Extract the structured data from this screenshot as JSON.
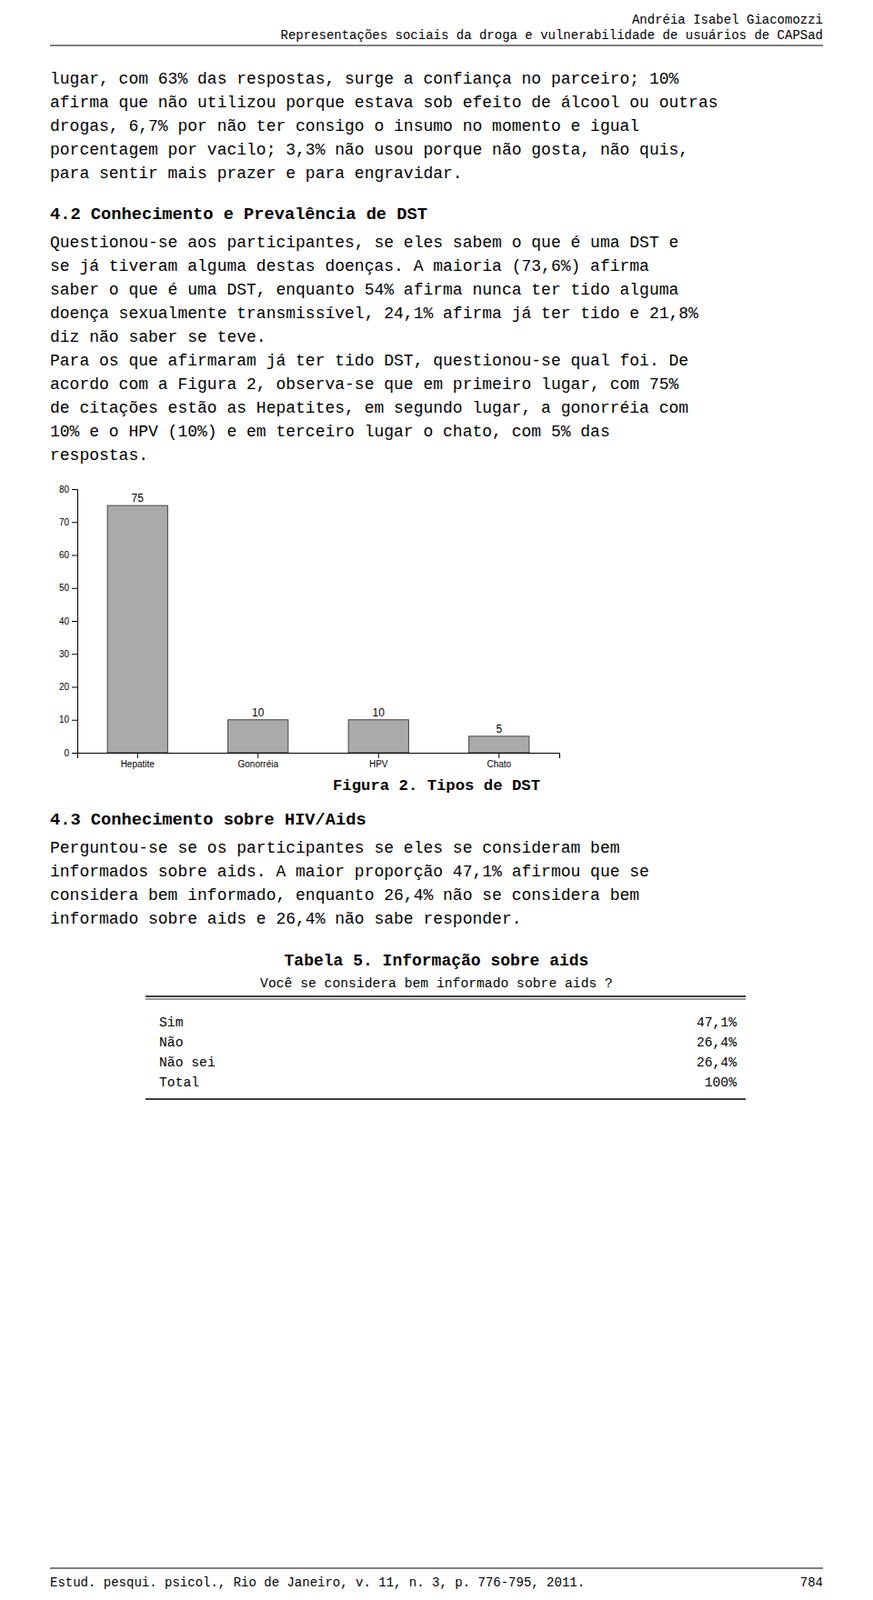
{
  "page": {
    "header_lines": [
      "Andréia Isabel Giacomozzi",
      "Representações sociais da droga e vulnerabilidade de usuários de CAPSad"
    ],
    "para1_lines": [
      "lugar, com 63% das respostas, surge a confiança no parceiro; 10%",
      "afirma que não utilizou porque estava sob efeito de álcool ou outras",
      "drogas, 6,7% por não ter consigo o insumo no momento e igual",
      "porcentagem por vacilo; 3,3% não usou porque não gosta, não quis,",
      "para sentir mais prazer e para engravidar."
    ],
    "section_title": "4.2 Conhecimento e Prevalência de DST",
    "para2_lines": [
      "Questionou-se aos participantes, se eles sabem o que é uma DST e",
      "se já tiveram alguma destas doenças. A maioria (73,6%) afirma",
      "saber o que é uma DST, enquanto 54% afirma nunca ter tido alguma",
      "doença sexualmente transmissível, 24,1% afirma já ter tido e 21,8%",
      "diz não saber se teve."
    ],
    "para3_lines": [
      "Para os que afirmaram já ter tido DST, questionou-se qual foi. De",
      "acordo com a Figura 2, observa-se que em primeiro lugar, com 75%",
      "de citações estão as Hepatites, em segundo lugar, a gonorréia com",
      "10% e o HPV (10%) e em terceiro lugar o chato, com 5% das",
      "respostas."
    ],
    "section_title2": "4.3 Conhecimento sobre HIV/Aids",
    "para4_lines": [
      "Perguntou-se se os participantes se eles se consideram bem",
      "informados sobre aids. A maior proporção 47,1% afirmou que se",
      "considera bem informado, enquanto 26,4% não se considera bem",
      "informado sobre aids e 26,4% não sabe responder."
    ],
    "table": {
      "title": "Tabela 5. Informação sobre aids",
      "subtitle": "Você se considera bem informado sobre aids ?",
      "rows": [
        [
          "Sim",
          "47,1%"
        ],
        [
          "Não",
          "26,4%"
        ],
        [
          "Não sei",
          "26,4%"
        ],
        [
          "Total",
          "100%"
        ]
      ]
    },
    "footer_text": "Estud. pesqui. psicol., Rio de Janeiro, v. 11, n. 3, p. 776-795, 2011.",
    "footer_right": "784"
  },
  "chart_data": {
    "type": "bar",
    "title": "Figura 2. Tipos de DST",
    "categories": [
      "Hepatite",
      "Gonorréia",
      "HPV",
      "Chato"
    ],
    "values": [
      75,
      10,
      10,
      5
    ],
    "color": "#aaaaaa",
    "ylim": [
      0,
      80
    ],
    "yticks": [
      0,
      10,
      20,
      30,
      40,
      50,
      60,
      70,
      80
    ],
    "grid": false,
    "data_labels": true
  }
}
